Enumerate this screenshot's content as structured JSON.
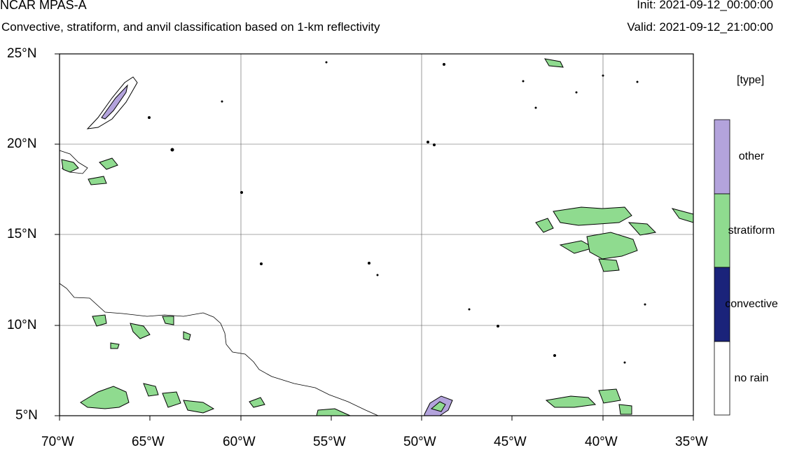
{
  "header": {
    "model": "NCAR MPAS-A",
    "description": "Convective, stratiform, and anvil classification based on 1-km reflectivity",
    "init": "Init: 2021-09-12_00:00:00",
    "valid": "Valid: 2021-09-12_21:00:00"
  },
  "map": {
    "lat_labels": [
      "25°N",
      "20°N",
      "15°N",
      "10°N",
      "5°N"
    ],
    "lon_labels": [
      "70°W",
      "65°W",
      "60°W",
      "55°W",
      "50°W",
      "45°W",
      "40°W",
      "35°W"
    ],
    "extent": {
      "lon_min": -70,
      "lon_max": -35,
      "lat_min": 5,
      "lat_max": 25
    }
  },
  "legend": {
    "unit": "[type]",
    "categories": [
      {
        "label": "other",
        "color": "#b3a3dc"
      },
      {
        "label": "stratiform",
        "color": "#8fdb8f"
      },
      {
        "label": "convective",
        "color": "#1a237a"
      },
      {
        "label": "no rain",
        "color": "#ffffff"
      }
    ]
  }
}
